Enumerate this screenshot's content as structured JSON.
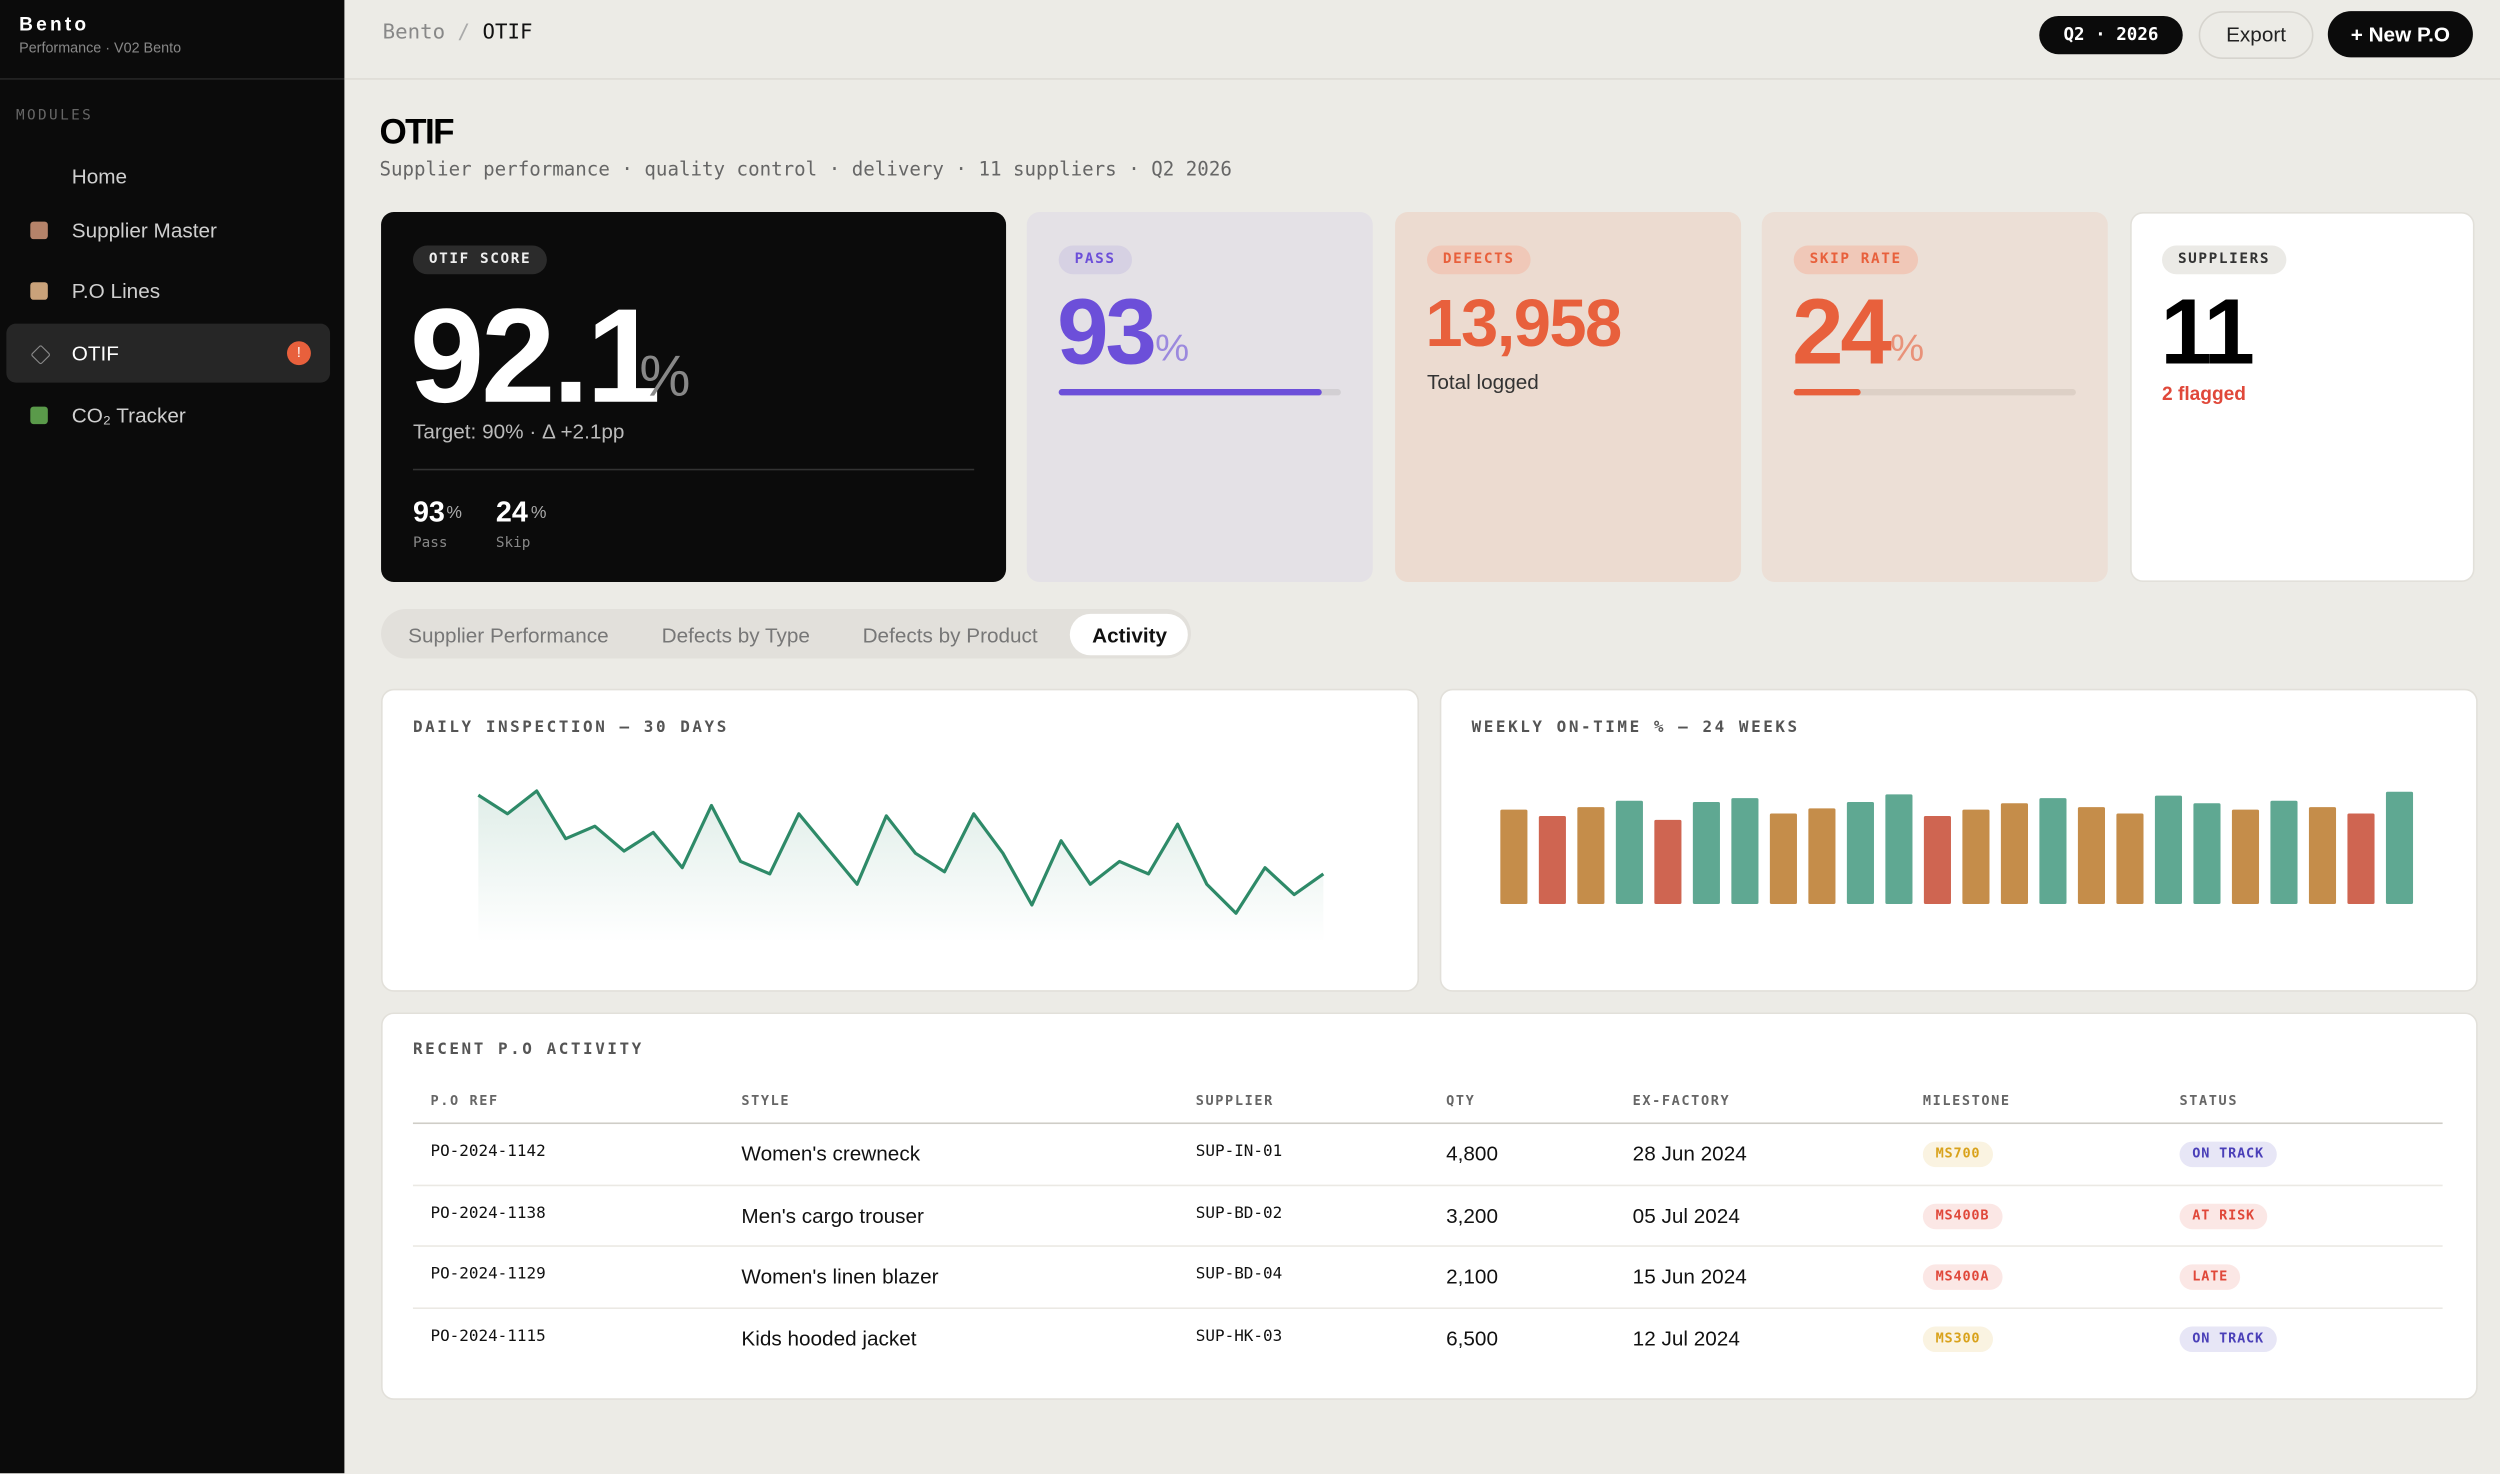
{
  "sidebar": {
    "brand": "Bento",
    "subtitle": "Performance · V02 Bento",
    "section": "MODULES",
    "nav": [
      {
        "label": "Home"
      },
      {
        "label": "Supplier Master"
      },
      {
        "label": "P.O Lines"
      },
      {
        "label": "OTIF",
        "badge": "!"
      },
      {
        "label": "CO₂ Tracker"
      }
    ]
  },
  "header": {
    "breadcrumb": [
      "Bento",
      "/",
      "OTIF"
    ],
    "period": "Q2 · 2026",
    "export": "Export",
    "new": "+ New P.O"
  },
  "page": {
    "title": "OTIF",
    "subtitle": "Supplier performance · quality control · delivery · 11 suppliers · Q2 2026"
  },
  "kpis": {
    "otif": {
      "label": "OTIF SCORE",
      "value": "92.1",
      "unit": "%",
      "target": "Target: 90% · Δ +2.1pp",
      "pass": {
        "value": "93",
        "unit": "%",
        "label": "Pass"
      },
      "skip": {
        "value": "24",
        "unit": "%",
        "label": "Skip"
      }
    },
    "pass": {
      "label": "PASS",
      "value": 93,
      "unit": "%",
      "color": "#6c4fd9"
    },
    "defects": {
      "label": "DEFECTS",
      "value": "13,958",
      "note": "Total logged",
      "color": "#e8603c"
    },
    "skip": {
      "label": "SKIP RATE",
      "value": 24,
      "unit": "%",
      "color": "#e8603c"
    },
    "suppliers": {
      "label": "SUPPLIERS",
      "value": "11",
      "note": "2 flagged"
    }
  },
  "tabs": [
    "Supplier Performance",
    "Defects by Type",
    "Defects by Product",
    "Activity"
  ],
  "chart_data": [
    {
      "type": "line",
      "title": "DAILY INSPECTION — 30 DAYS",
      "color": "#2e8a68",
      "ylim": [
        0,
        100
      ],
      "values": [
        71,
        62,
        73,
        50,
        56,
        44,
        53,
        36,
        66,
        39,
        33,
        62,
        45,
        28,
        61,
        43,
        34,
        62,
        43,
        18,
        49,
        28,
        39,
        33,
        57,
        28,
        14,
        36,
        23,
        33
      ]
    },
    {
      "type": "bar",
      "title": "WEEKLY ON-TIME % — 24 WEEKS",
      "ylim": [
        0,
        100
      ],
      "values": [
        74,
        69,
        76,
        81,
        66,
        80,
        83,
        71,
        75,
        80,
        86,
        69,
        74,
        79,
        83,
        76,
        71,
        85,
        79,
        74,
        81,
        76,
        71,
        88
      ],
      "colors": [
        "#c58d4a",
        "#cf6551",
        "#c58d4a",
        "#5fa892",
        "#cf6551",
        "#5fa892",
        "#5fa892",
        "#c58d4a",
        "#c58d4a",
        "#5fa892",
        "#5fa892",
        "#cf6551",
        "#c58d4a",
        "#c58d4a",
        "#5fa892",
        "#c58d4a",
        "#c58d4a",
        "#5fa892",
        "#5fa892",
        "#c58d4a",
        "#5fa892",
        "#c58d4a",
        "#cf6551",
        "#5fa892"
      ]
    }
  ],
  "table": {
    "title": "RECENT P.O ACTIVITY",
    "columns": [
      "P.O REF",
      "STYLE",
      "SUPPLIER",
      "QTY",
      "EX-FACTORY",
      "MILESTONE",
      "STATUS"
    ],
    "rows": [
      [
        "PO-2024-1142",
        "Women's crewneck",
        "SUP-IN-01",
        "4,800",
        "28 Jun 2024",
        {
          "text": "MS700",
          "color": "#d9a21b"
        },
        {
          "text": "ON TRACK",
          "color": "#4a3fb8"
        }
      ],
      [
        "PO-2024-1138",
        "Men's cargo trouser",
        "SUP-BD-02",
        "3,200",
        "05 Jul 2024",
        {
          "text": "MS400B",
          "color": "#e0483a"
        },
        {
          "text": "AT RISK",
          "color": "#e0483a"
        }
      ],
      [
        "PO-2024-1129",
        "Women's linen blazer",
        "SUP-BD-04",
        "2,100",
        "15 Jun 2024",
        {
          "text": "MS400A",
          "color": "#e0483a"
        },
        {
          "text": "LATE",
          "color": "#e0483a"
        }
      ],
      [
        "PO-2024-1115",
        "Kids hooded jacket",
        "SUP-HK-03",
        "6,500",
        "12 Jul 2024",
        {
          "text": "MS300",
          "color": "#d9a21b"
        },
        {
          "text": "ON TRACK",
          "color": "#4a3fb8"
        }
      ]
    ]
  }
}
